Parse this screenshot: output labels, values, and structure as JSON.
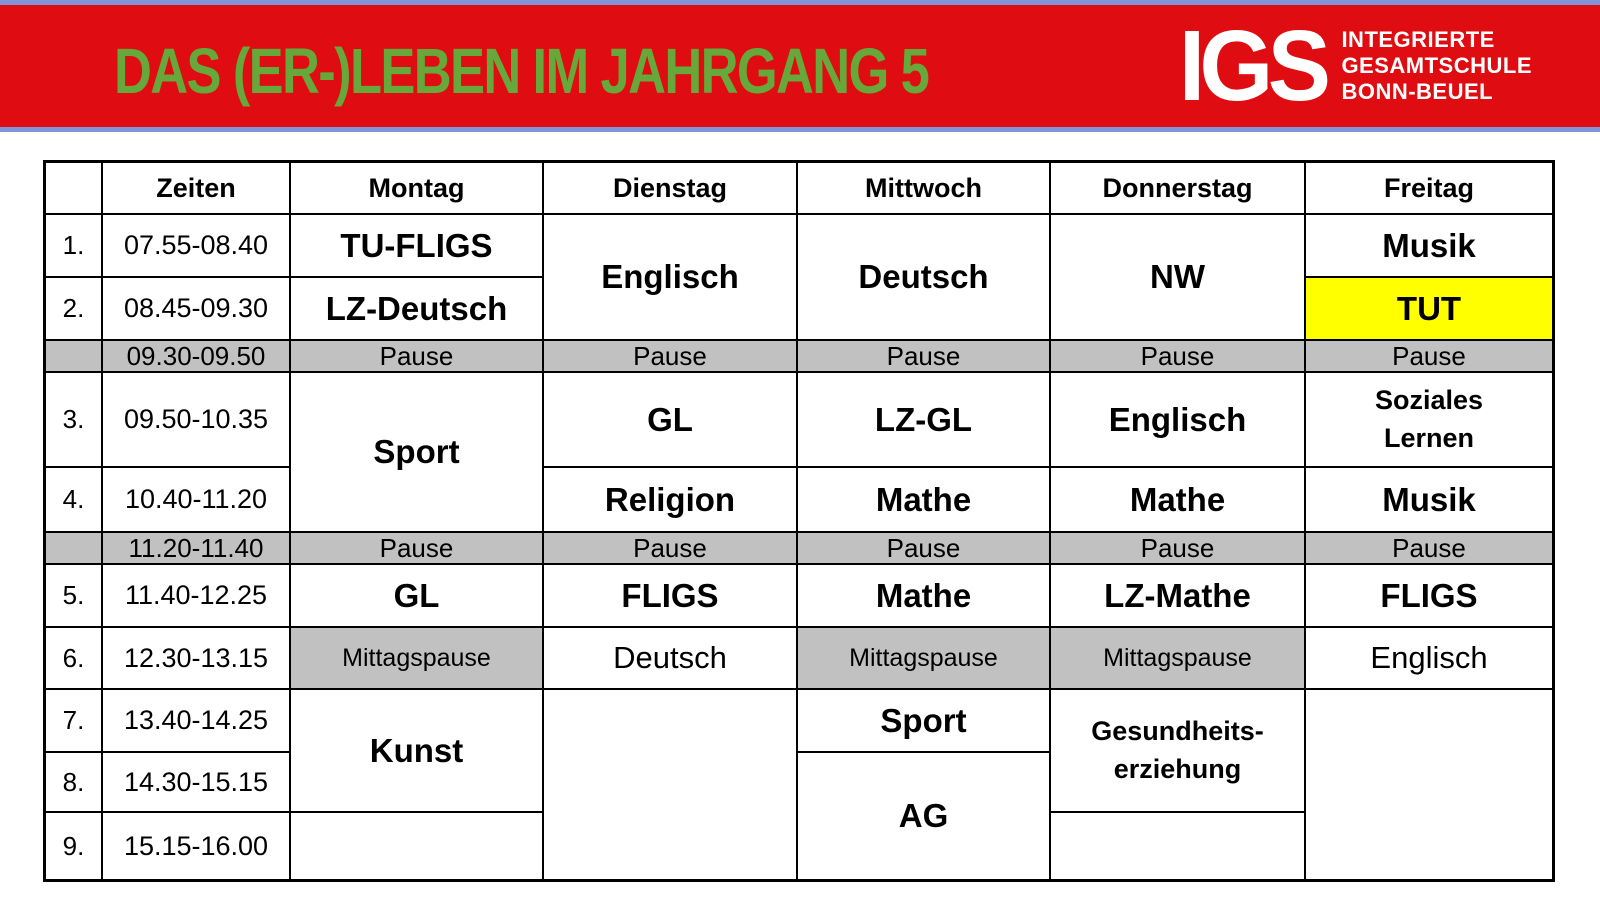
{
  "banner": {
    "title": "DAS (ER-)LEBEN IM JAHRGANG 5",
    "logo": {
      "acronym": "IGS",
      "school_lines": "INTEGRIERTE\nGESAMTSCHULE\nBONN-BEUEL"
    },
    "colors": {
      "red": "#df0d11",
      "green": "#67a83a",
      "blue": "#8195d6"
    }
  },
  "timetable": {
    "headers": {
      "corner": "",
      "zeiten": "Zeiten",
      "montag": "Montag",
      "dienstag": "Dienstag",
      "mittwoch": "Mittwoch",
      "donnerstag": "Donnerstag",
      "freitag": "Freitag"
    },
    "pause_label": "Pause",
    "lunch_label": "Mittagspause",
    "rows": {
      "r1": {
        "num": "1.",
        "time": "07.55-08.40",
        "montag": "TU-FLIGS",
        "freitag": "Musik"
      },
      "r2": {
        "num": "2.",
        "time": "08.45-09.30",
        "montag": "LZ-Deutsch",
        "freitag": "TUT"
      },
      "pause1": {
        "time": "09.30-09.50"
      },
      "r3": {
        "num": "3.",
        "time": "09.50-10.35",
        "dienstag": "GL",
        "mittwoch": "LZ-GL",
        "donnerstag": "Englisch",
        "freitag": "Soziales\nLernen"
      },
      "r4": {
        "num": "4.",
        "time": "10.40-11.20",
        "dienstag": "Religion",
        "mittwoch": "Mathe",
        "donnerstag": "Mathe",
        "freitag": "Musik"
      },
      "pause2": {
        "time": "11.20-11.40"
      },
      "r5": {
        "num": "5.",
        "time": "11.40-12.25",
        "montag": "GL",
        "dienstag": "FLIGS",
        "mittwoch": "Mathe",
        "donnerstag": "LZ-Mathe",
        "freitag": "FLIGS"
      },
      "r6": {
        "num": "6.",
        "time": "12.30-13.15",
        "dienstag": "Deutsch",
        "freitag": "Englisch"
      },
      "r7": {
        "num": "7.",
        "time": "13.40-14.25",
        "mittwoch": "Sport"
      },
      "r8": {
        "num": "8.",
        "time": "14.30-15.15"
      },
      "r9": {
        "num": "9.",
        "time": "15.15-16.00"
      }
    },
    "merged": {
      "dienstag_1_2": "Englisch",
      "mittwoch_1_2": "Deutsch",
      "donnerstag_1_2": "NW",
      "montag_3_4": "Sport",
      "montag_7_8": "Kunst",
      "mittwoch_8_9": "AG",
      "donnerstag_7_8": "Gesundheits-\nerziehung"
    },
    "colors": {
      "pause_gray": "#c1c1c1",
      "highlight_yellow": "#ffff00",
      "grid_black": "#000000"
    }
  }
}
